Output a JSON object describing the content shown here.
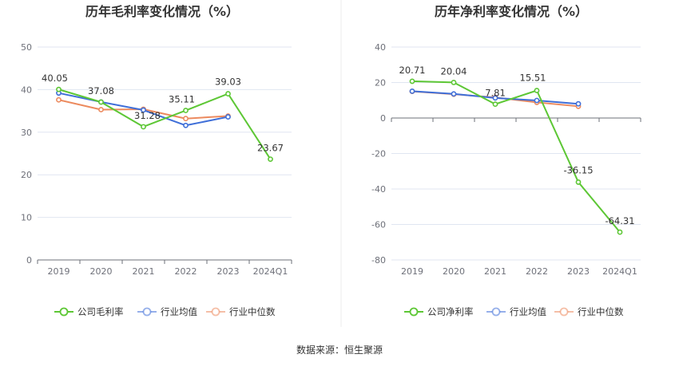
{
  "source_text": "数据来源：恒生聚源",
  "colors": {
    "company": "#5dc735",
    "industry_avg": "#3f6fd8",
    "industry_median": "#ec8a5e"
  },
  "chart_data": [
    {
      "type": "line",
      "title": "历年毛利率变化情况（%）",
      "categories": [
        "2019",
        "2020",
        "2021",
        "2022",
        "2023",
        "2024Q1"
      ],
      "ylim": [
        0,
        50
      ],
      "yticks": [
        0,
        10,
        20,
        30,
        40,
        50
      ],
      "grid": true,
      "legend_position": "bottom",
      "series": [
        {
          "name": "公司毛利率",
          "key": "company",
          "values": [
            40.05,
            37.08,
            31.28,
            35.11,
            39.03,
            23.67
          ],
          "labels": [
            "40.05",
            "37.08",
            "31.28",
            "35.11",
            "39.03",
            "23.67"
          ]
        },
        {
          "name": "行业均值",
          "key": "industry_avg",
          "values": [
            39.2,
            37.1,
            35.2,
            31.6,
            33.6,
            null
          ]
        },
        {
          "name": "行业中位数",
          "key": "industry_median",
          "values": [
            37.6,
            35.3,
            35.4,
            33.2,
            33.8,
            null
          ]
        }
      ]
    },
    {
      "type": "line",
      "title": "历年净利率变化情况（%）",
      "categories": [
        "2019",
        "2020",
        "2021",
        "2022",
        "2023",
        "2024Q1"
      ],
      "ylim": [
        -80,
        40
      ],
      "yticks": [
        -80,
        -60,
        -40,
        -20,
        0,
        20,
        40
      ],
      "grid": true,
      "legend_position": "bottom",
      "series": [
        {
          "name": "公司净利率",
          "key": "company",
          "values": [
            20.71,
            20.04,
            7.81,
            15.51,
            -36.15,
            -64.31
          ],
          "labels": [
            "20.71",
            "20.04",
            "7.81",
            "15.51",
            "-36.15",
            "-64.31"
          ]
        },
        {
          "name": "行业均值",
          "key": "industry_avg",
          "values": [
            15.1,
            13.6,
            11.3,
            9.9,
            8.0,
            null
          ]
        },
        {
          "name": "行业中位数",
          "key": "industry_median",
          "values": [
            15.0,
            13.4,
            11.6,
            8.8,
            6.6,
            null
          ]
        }
      ]
    }
  ]
}
